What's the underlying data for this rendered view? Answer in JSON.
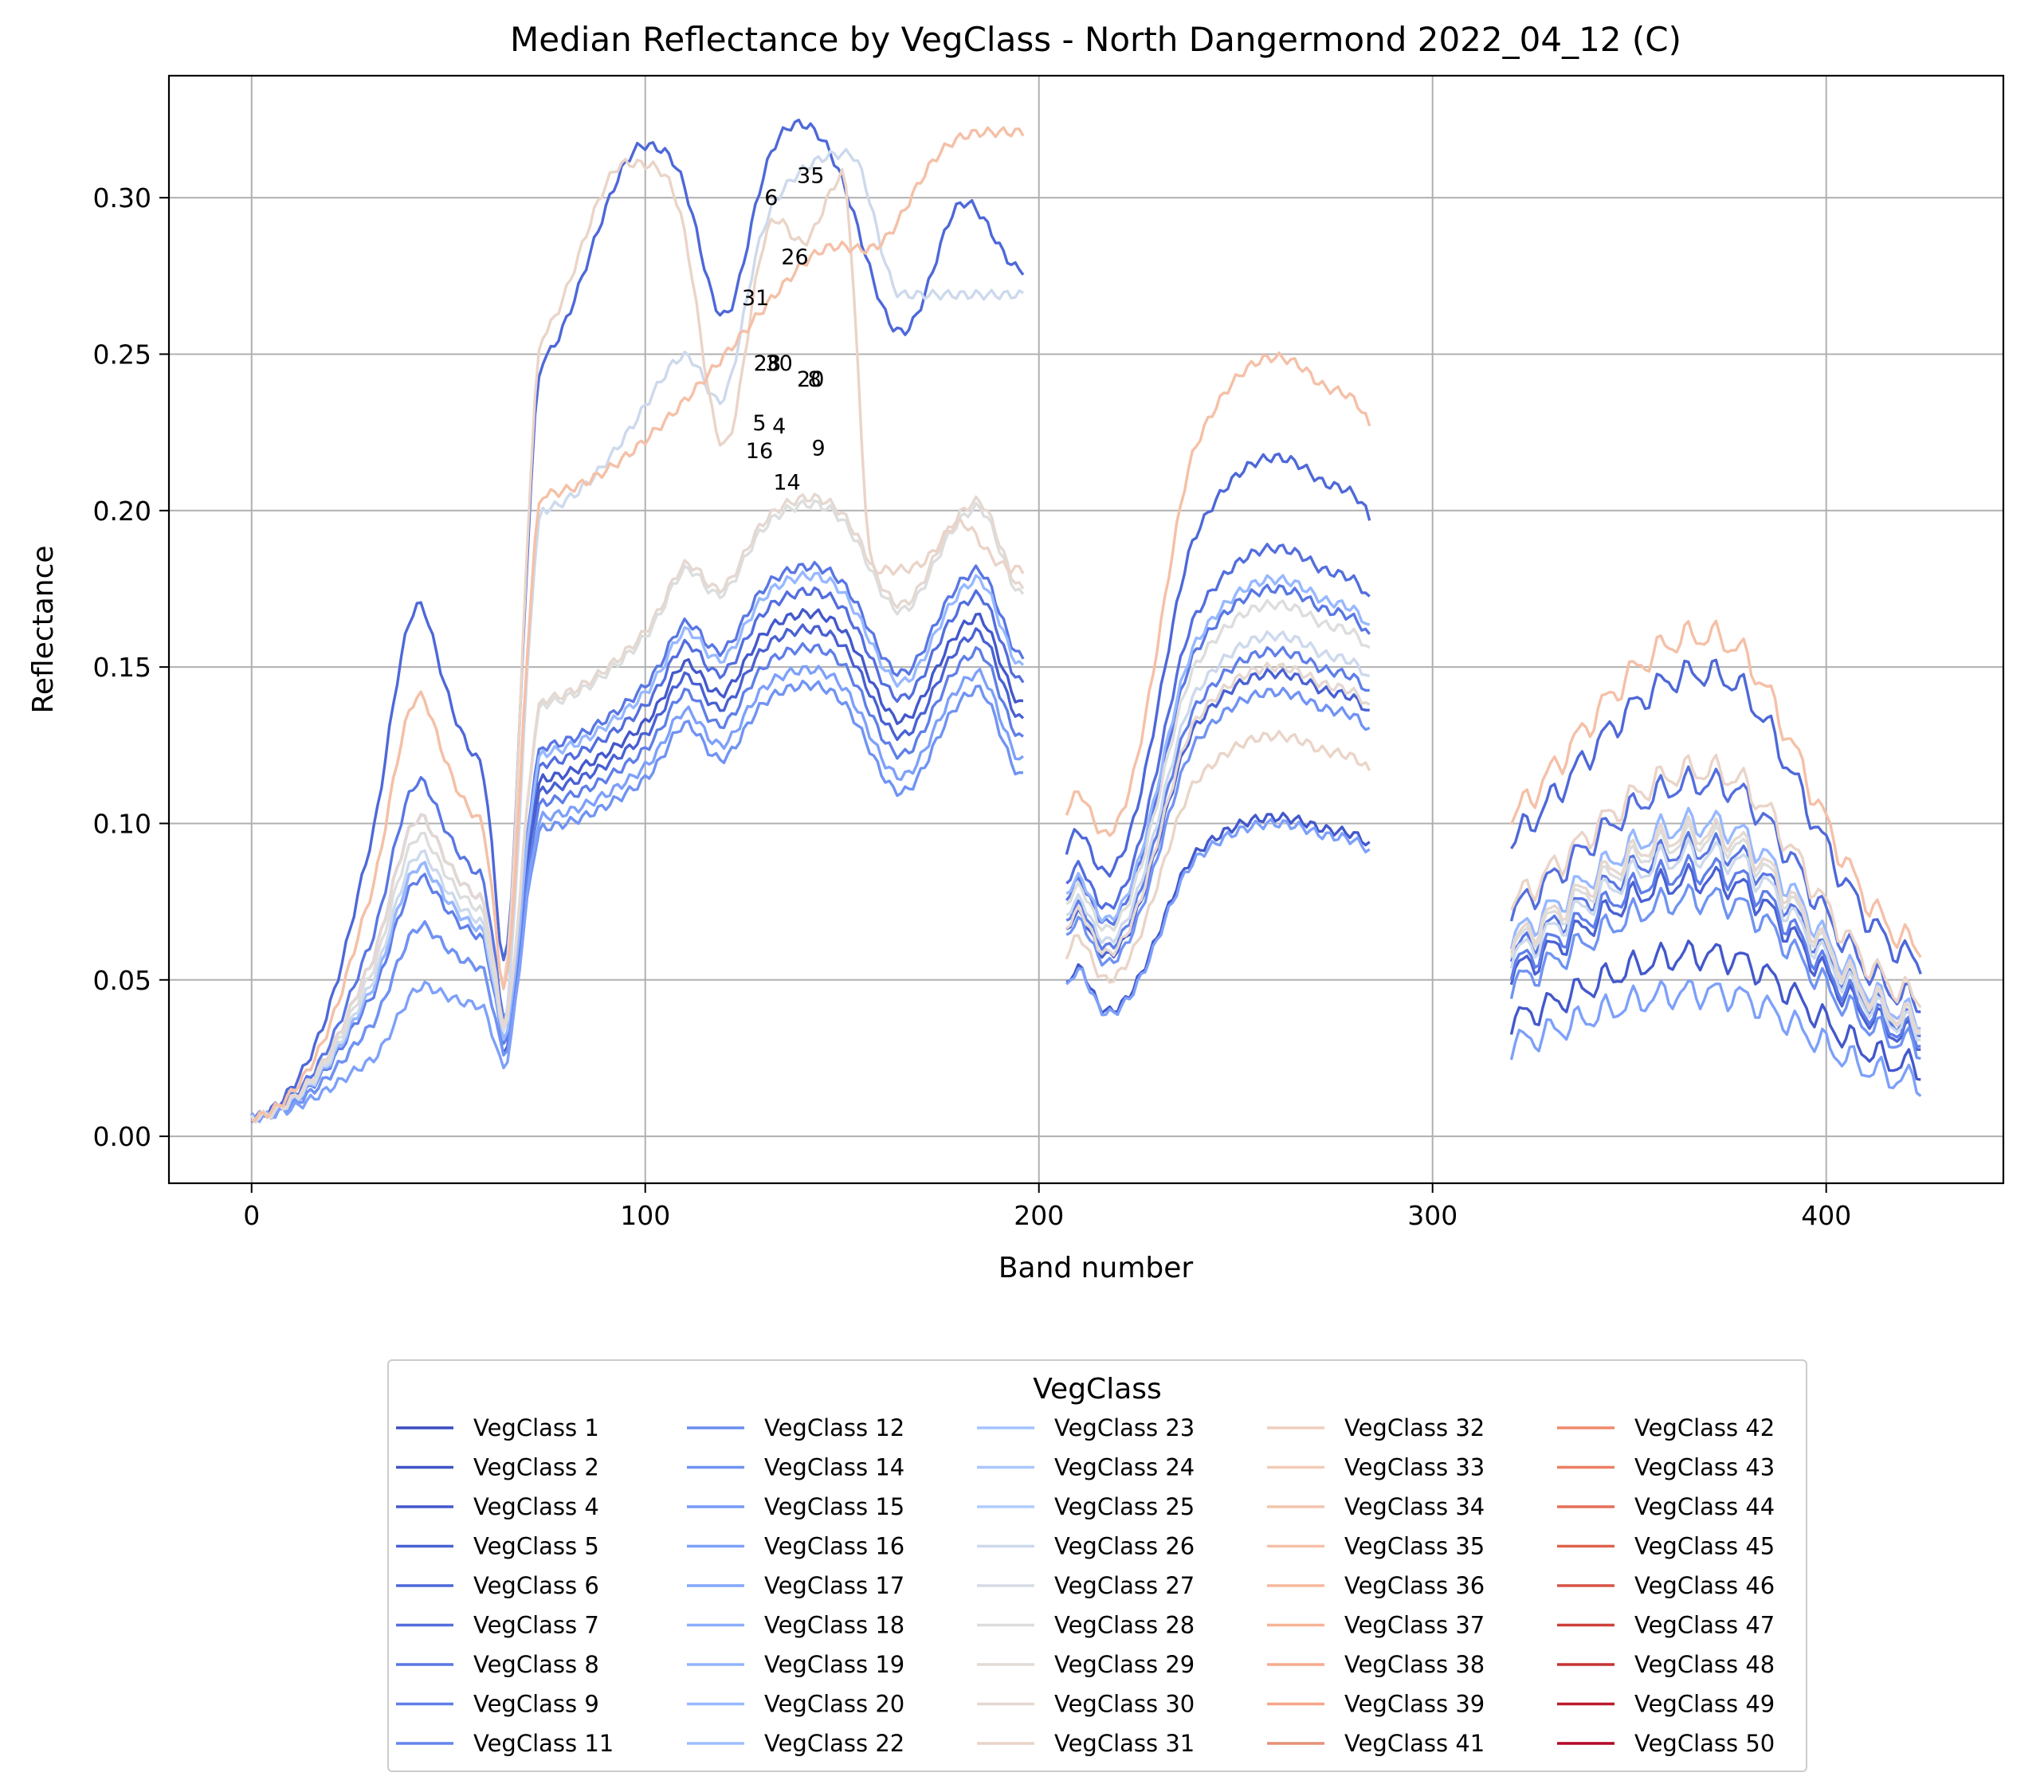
{
  "chart_data": {
    "type": "line",
    "title": "Median Reflectance by VegClass - North Dangermond 2022_04_12 (C)",
    "xlabel": "Band number",
    "ylabel": "Reflectance",
    "xlim": [
      -21,
      445
    ],
    "ylim": [
      -0.015,
      0.339
    ],
    "xticks": [
      0,
      100,
      200,
      300,
      400
    ],
    "yticks": [
      0.0,
      0.05,
      0.1,
      0.15,
      0.2,
      0.25,
      0.3
    ],
    "grid": true,
    "legend": {
      "title": "VegClass",
      "placement": "bottom-center",
      "columns": 5
    },
    "band_segments": [
      [
        0,
        196
      ],
      [
        207,
        284
      ],
      [
        320,
        424
      ]
    ],
    "annotations": [
      {
        "text": "35",
        "x": 142,
        "y": 0.307
      },
      {
        "text": "6",
        "x": 132,
        "y": 0.3
      },
      {
        "text": "26",
        "x": 138,
        "y": 0.281
      },
      {
        "text": "31",
        "x": 128,
        "y": 0.268
      },
      {
        "text": "28",
        "x": 131,
        "y": 0.247
      },
      {
        "text": "30",
        "x": 134,
        "y": 0.247
      },
      {
        "text": "20",
        "x": 142,
        "y": 0.242
      },
      {
        "text": "8",
        "x": 143,
        "y": 0.242
      },
      {
        "text": "5",
        "x": 129,
        "y": 0.228
      },
      {
        "text": "4",
        "x": 134,
        "y": 0.227
      },
      {
        "text": "16",
        "x": 129,
        "y": 0.219
      },
      {
        "text": "9",
        "x": 144,
        "y": 0.22
      },
      {
        "text": "14",
        "x": 136,
        "y": 0.209
      }
    ],
    "series": [
      {
        "name": "VegClass 1",
        "color": "#3b4cc0",
        "shape": "veg",
        "vis": 0.19,
        "nir": 0.2,
        "s1": 0.075,
        "s2": 0.046,
        "visible": false
      },
      {
        "name": "VegClass 2",
        "color": "#3f53c6",
        "shape": "veg",
        "vis": 0.182,
        "nir": 0.2,
        "s1": 0.075,
        "s2": 0.046,
        "visible": false
      },
      {
        "name": "VegClass 4",
        "color": "#4358cb",
        "shape": "veg",
        "vis": 0.04,
        "nir": 0.233,
        "s1": 0.102,
        "s2": 0.058,
        "visible": true
      },
      {
        "name": "VegClass 5",
        "color": "#4961d2",
        "shape": "veg",
        "vis": 0.05,
        "nir": 0.228,
        "s1": 0.148,
        "s2": 0.082,
        "visible": true
      },
      {
        "name": "VegClass 6",
        "color": "#4e68d8",
        "shape": "peak",
        "vis": 0.093,
        "nir": 0.317,
        "s1": 0.217,
        "s2": 0.148,
        "visible": true
      },
      {
        "name": "VegClass 7",
        "color": "#536edd",
        "shape": "veg",
        "vis": 0.058,
        "nir": 0.24,
        "s1": 0.188,
        "s2": 0.113,
        "visible": true
      },
      {
        "name": "VegClass 8",
        "color": "#5977e3",
        "shape": "veg",
        "vis": 0.064,
        "nir": 0.248,
        "s1": 0.175,
        "s2": 0.092,
        "visible": true
      },
      {
        "name": "VegClass 9",
        "color": "#5f7fe8",
        "shape": "veg",
        "vis": 0.048,
        "nir": 0.222,
        "s1": 0.155,
        "s2": 0.085,
        "visible": true
      },
      {
        "name": "VegClass 11",
        "color": "#6485ec",
        "shape": "veg",
        "vis": 0.046,
        "nir": 0.235,
        "s1": 0.145,
        "s2": 0.08,
        "visible": false
      },
      {
        "name": "VegClass 12",
        "color": "#6b8df0",
        "shape": "veg",
        "vis": 0.046,
        "nir": 0.235,
        "s1": 0.145,
        "s2": 0.08,
        "visible": false
      },
      {
        "name": "VegClass 14",
        "color": "#7093f3",
        "shape": "veg",
        "vis": 0.04,
        "nir": 0.21,
        "s1": 0.142,
        "s2": 0.076,
        "visible": true
      },
      {
        "name": "VegClass 15",
        "color": "#779af7",
        "shape": "veg",
        "vis": 0.044,
        "nir": 0.23,
        "s1": 0.14,
        "s2": 0.078,
        "visible": false
      },
      {
        "name": "VegClass 16",
        "color": "#7da0f9",
        "shape": "veg",
        "vis": 0.03,
        "nir": 0.215,
        "s1": 0.1,
        "s2": 0.046,
        "visible": true
      },
      {
        "name": "VegClass 17",
        "color": "#84a7fc",
        "shape": "veg",
        "vis": 0.044,
        "nir": 0.23,
        "s1": 0.14,
        "s2": 0.078,
        "visible": false
      },
      {
        "name": "VegClass 18",
        "color": "#8badfd",
        "shape": "veg",
        "vis": 0.044,
        "nir": 0.23,
        "s1": 0.14,
        "s2": 0.078,
        "visible": false
      },
      {
        "name": "VegClass 19",
        "color": "#92b4fe",
        "shape": "veg",
        "vis": 0.044,
        "nir": 0.23,
        "s1": 0.14,
        "s2": 0.078,
        "visible": false
      },
      {
        "name": "VegClass 20",
        "color": "#97b8ff",
        "shape": "veg",
        "vis": 0.05,
        "nir": 0.245,
        "s1": 0.178,
        "s2": 0.1,
        "visible": true
      },
      {
        "name": "VegClass 22",
        "color": "#9ebeff",
        "shape": "veg",
        "vis": 0.044,
        "nir": 0.23,
        "s1": 0.14,
        "s2": 0.078,
        "visible": false
      },
      {
        "name": "VegClass 23",
        "color": "#a5c3fe",
        "shape": "veg",
        "vis": 0.044,
        "nir": 0.23,
        "s1": 0.14,
        "s2": 0.078,
        "visible": false
      },
      {
        "name": "VegClass 24",
        "color": "#aac7fd",
        "shape": "veg",
        "vis": 0.044,
        "nir": 0.23,
        "s1": 0.14,
        "s2": 0.078,
        "visible": false
      },
      {
        "name": "VegClass 25",
        "color": "#b1cbfc",
        "shape": "veg",
        "vis": 0.044,
        "nir": 0.23,
        "s1": 0.14,
        "s2": 0.078,
        "visible": false
      },
      {
        "name": "VegClass 26",
        "color": "#cdd9ec",
        "shape": "soil",
        "vis": 0.052,
        "nir": 0.314,
        "s1": 0.16,
        "s2": 0.09,
        "visible": true
      },
      {
        "name": "VegClass 27",
        "color": "#d5dbe5",
        "shape": "veg",
        "vis": 0.055,
        "nir": 0.26,
        "s1": 0.165,
        "s2": 0.09,
        "visible": false
      },
      {
        "name": "VegClass 28",
        "color": "#dcdddd",
        "shape": "veg",
        "vis": 0.055,
        "nir": 0.268,
        "s1": 0.17,
        "s2": 0.095,
        "visible": true
      },
      {
        "name": "VegClass 29",
        "color": "#e2dad5",
        "shape": "veg",
        "vis": 0.055,
        "nir": 0.262,
        "s1": 0.165,
        "s2": 0.09,
        "visible": false
      },
      {
        "name": "VegClass 30",
        "color": "#e5d8d1",
        "shape": "veg",
        "vis": 0.058,
        "nir": 0.27,
        "s1": 0.15,
        "s2": 0.097,
        "visible": true
      },
      {
        "name": "VegClass 31",
        "color": "#ead4c8",
        "shape": "dry",
        "vis": 0.078,
        "nir": 0.311,
        "s1": 0.128,
        "s2": 0.117,
        "visible": true
      },
      {
        "name": "VegClass 32",
        "color": "#efcfbf",
        "shape": "veg",
        "vis": 0.06,
        "nir": 0.27,
        "s1": 0.17,
        "s2": 0.1,
        "visible": false
      },
      {
        "name": "VegClass 33",
        "color": "#f2cbb7",
        "shape": "veg",
        "vis": 0.06,
        "nir": 0.27,
        "s1": 0.17,
        "s2": 0.1,
        "visible": false
      },
      {
        "name": "VegClass 34",
        "color": "#f4c5ad",
        "shape": "veg",
        "vis": 0.06,
        "nir": 0.27,
        "s1": 0.17,
        "s2": 0.1,
        "visible": false
      },
      {
        "name": "VegClass 35",
        "color": "#f5c0a7",
        "shape": "rise",
        "vis": 0.078,
        "nir": 0.321,
        "s1": 0.249,
        "s2": 0.16,
        "visible": true
      },
      {
        "name": "VegClass 36",
        "color": "#f6b99e",
        "shape": "veg",
        "vis": 0.06,
        "nir": 0.27,
        "s1": 0.17,
        "s2": 0.1,
        "visible": false
      },
      {
        "name": "VegClass 37",
        "color": "#f7b396",
        "shape": "veg",
        "vis": 0.06,
        "nir": 0.27,
        "s1": 0.17,
        "s2": 0.1,
        "visible": false
      },
      {
        "name": "VegClass 38",
        "color": "#f7ac8e",
        "shape": "veg",
        "vis": 0.06,
        "nir": 0.27,
        "s1": 0.17,
        "s2": 0.1,
        "visible": false
      },
      {
        "name": "VegClass 39",
        "color": "#f7a688",
        "shape": "veg",
        "vis": 0.06,
        "nir": 0.27,
        "s1": 0.17,
        "s2": 0.1,
        "visible": false
      },
      {
        "name": "VegClass 41",
        "color": "#e69176",
        "shape": "veg",
        "vis": 0.06,
        "nir": 0.27,
        "s1": 0.17,
        "s2": 0.1,
        "visible": false
      },
      {
        "name": "VegClass 42",
        "color": "#f08a6c",
        "shape": "veg",
        "vis": 0.06,
        "nir": 0.27,
        "s1": 0.17,
        "s2": 0.1,
        "visible": false
      },
      {
        "name": "VegClass 43",
        "color": "#ec7f63",
        "shape": "veg",
        "vis": 0.06,
        "nir": 0.27,
        "s1": 0.17,
        "s2": 0.1,
        "visible": false
      },
      {
        "name": "VegClass 44",
        "color": "#e57058",
        "shape": "veg",
        "vis": 0.06,
        "nir": 0.27,
        "s1": 0.17,
        "s2": 0.1,
        "visible": false
      },
      {
        "name": "VegClass 45",
        "color": "#df634e",
        "shape": "veg",
        "vis": 0.06,
        "nir": 0.27,
        "s1": 0.17,
        "s2": 0.1,
        "visible": false
      },
      {
        "name": "VegClass 46",
        "color": "#d75445",
        "shape": "veg",
        "vis": 0.06,
        "nir": 0.27,
        "s1": 0.17,
        "s2": 0.1,
        "visible": false
      },
      {
        "name": "VegClass 47",
        "color": "#cd423b",
        "shape": "veg",
        "vis": 0.06,
        "nir": 0.27,
        "s1": 0.17,
        "s2": 0.1,
        "visible": false
      },
      {
        "name": "VegClass 48",
        "color": "#c53334",
        "shape": "veg",
        "vis": 0.06,
        "nir": 0.27,
        "s1": 0.17,
        "s2": 0.1,
        "visible": false
      },
      {
        "name": "VegClass 49",
        "color": "#bb1b2c",
        "shape": "veg",
        "vis": 0.06,
        "nir": 0.27,
        "s1": 0.17,
        "s2": 0.1,
        "visible": false
      },
      {
        "name": "VegClass 50",
        "color": "#b40426",
        "shape": "veg",
        "vis": 0.06,
        "nir": 0.27,
        "s1": 0.17,
        "s2": 0.1,
        "visible": false
      }
    ]
  }
}
